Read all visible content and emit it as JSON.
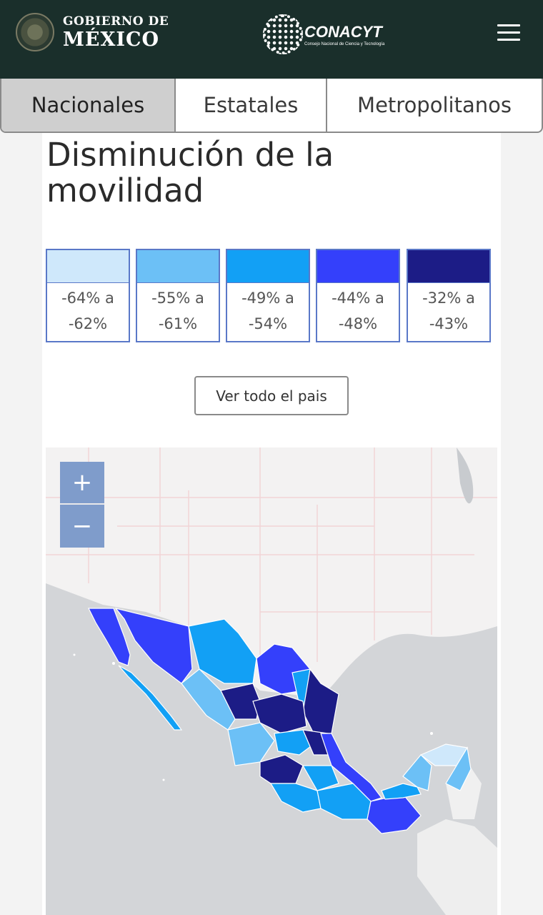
{
  "header": {
    "gov_line1": "GOBIERNO DE",
    "gov_line2": "MÉXICO",
    "org_name": "CONACYT",
    "org_sub": "Consejo Nacional de Ciencia y Tecnología",
    "menu_icon": "hamburger-menu-icon"
  },
  "tabs": [
    {
      "label": "Nacionales",
      "active": true
    },
    {
      "label": "Estatales",
      "active": false
    },
    {
      "label": "Metropolitanos",
      "active": false
    }
  ],
  "main": {
    "title_line1": "Disminución de la",
    "title_line2": "movilidad",
    "button_label": "Ver todo el pais"
  },
  "legend": [
    {
      "range_a": "-64% a",
      "range_b": "-62%",
      "color": "#cfe8fb"
    },
    {
      "range_a": "-55% a",
      "range_b": "-61%",
      "color": "#6cc0f6"
    },
    {
      "range_a": "-49% a",
      "range_b": "-54%",
      "color": "#12a0f5"
    },
    {
      "range_a": "-44% a",
      "range_b": "-48%",
      "color": "#3440fb"
    },
    {
      "range_a": "-32% a",
      "range_b": "-43%",
      "color": "#1c1c86"
    }
  ],
  "map": {
    "zoom_in": "+",
    "zoom_out": "−"
  }
}
